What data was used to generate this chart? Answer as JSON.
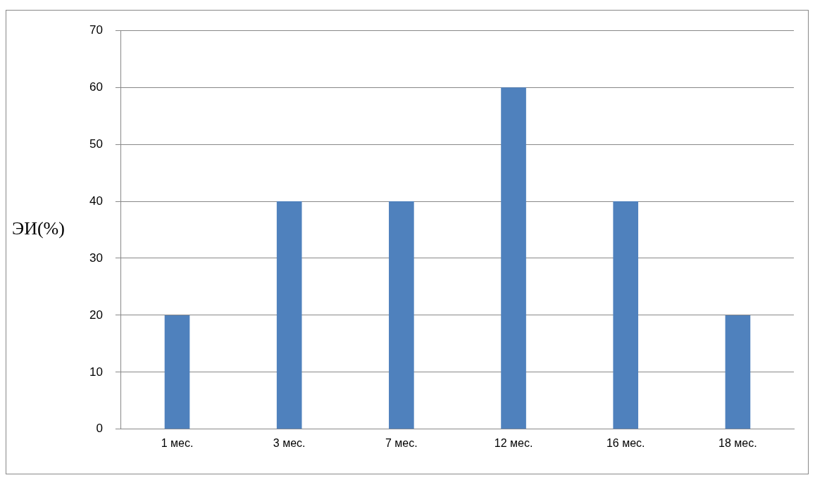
{
  "chart_data": {
    "type": "bar",
    "ylabel": "ЭИ(%)",
    "categories": [
      "1 мес.",
      "3 мес.",
      "7 мес.",
      "12 мес.",
      "16 мес.",
      "18 мес."
    ],
    "values": [
      20,
      40,
      40,
      60,
      40,
      20
    ],
    "color": "#4f81bd",
    "ylim": [
      0,
      70
    ],
    "yticks": [
      0,
      10,
      20,
      30,
      40,
      50,
      60,
      70
    ],
    "grid": "y",
    "legend": false
  }
}
